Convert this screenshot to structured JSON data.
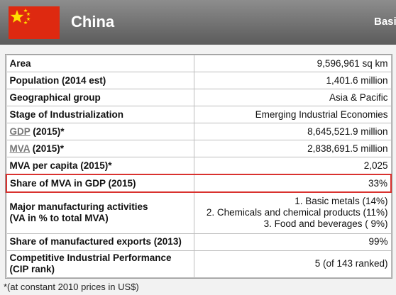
{
  "header": {
    "country": "China",
    "tab_label": "Basi",
    "flag": {
      "field_color": "#de2910",
      "star_color": "#ffde00"
    }
  },
  "table": {
    "rows": [
      {
        "label": "Area",
        "value": "9,596,961 sq km"
      },
      {
        "label": "Population (2014 est)",
        "value": "1,401.6 million"
      },
      {
        "label": "Geographical group",
        "value": "Asia & Pacific"
      },
      {
        "label": "Stage of Industrialization",
        "value": "Emerging Industrial Economies"
      },
      {
        "label_abbr": "GDP",
        "label_rest": " (2015)*",
        "value": "8,645,521.9 million"
      },
      {
        "label_abbr": "MVA",
        "label_rest": " (2015)*",
        "value": "2,838,691.5 million"
      },
      {
        "label": "MVA per capita (2015)*",
        "value": "2,025"
      },
      {
        "label": "Share of MVA in GDP (2015)",
        "value": "33%"
      },
      {
        "label_line1": "Major manufacturing activities",
        "label_line2": "(VA in % to total MVA)",
        "values": [
          "1. Basic metals (14%)",
          "2. Chemicals and chemical products (11%)",
          "3. Food and beverages ( 9%)"
        ]
      },
      {
        "label": "Share of manufactured exports (2013)",
        "value": "99%"
      },
      {
        "label_line1": "Competitive Industrial Performance",
        "label_line2": "(CIP rank)",
        "value": "5 (of 143 ranked)"
      }
    ],
    "highlight_color": "#d9322f"
  },
  "footnote": "*(at constant 2010 prices in US$)"
}
